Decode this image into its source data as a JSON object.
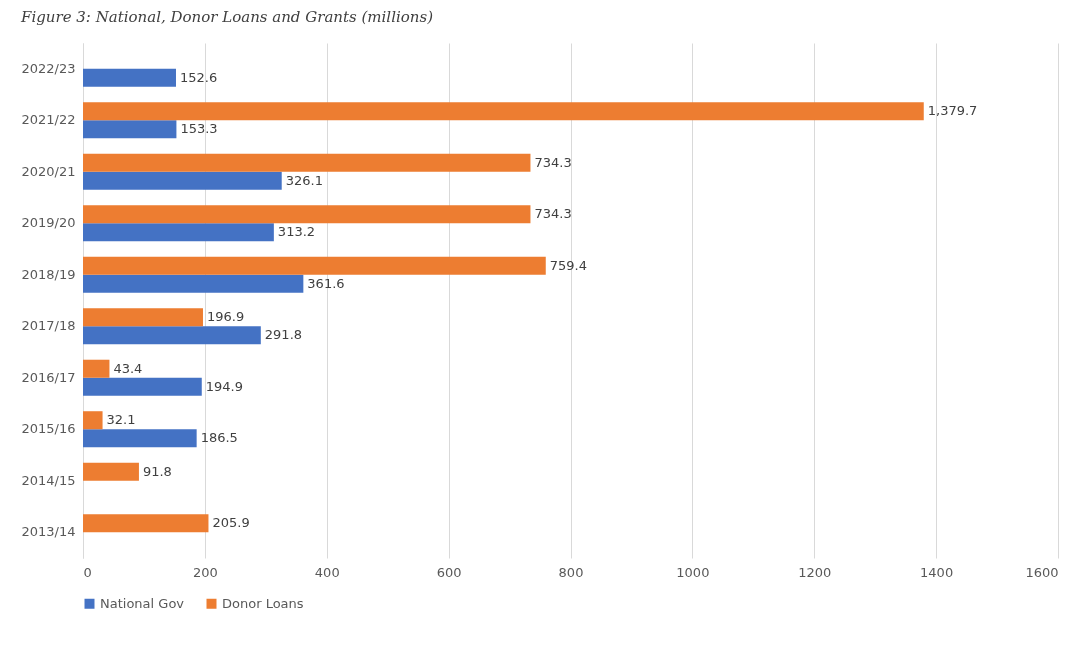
{
  "chart_data": {
    "type": "bar",
    "orientation": "horizontal",
    "title": "Figure 3: National, Donor Loans and Grants (millions)",
    "categories": [
      "2022/23",
      "2021/22",
      "2020/21",
      "2019/20",
      "2018/19",
      "2017/18",
      "2016/17",
      "2015/16",
      "2014/15",
      "2013/14"
    ],
    "series": [
      {
        "name": "National Gov",
        "color": "#4472c4",
        "values": [
          152.6,
          153.3,
          326.1,
          313.2,
          361.6,
          291.8,
          194.9,
          186.5,
          null,
          null
        ],
        "value_labels": [
          "152.6",
          "153.3",
          "326.1",
          "313.2",
          "361.6",
          "291.8",
          "194.9",
          "186.5",
          null,
          null
        ]
      },
      {
        "name": "Donor Loans",
        "color": "#ed7d31",
        "values": [
          null,
          1379.7,
          734.3,
          734.3,
          759.4,
          196.9,
          43.4,
          32.1,
          91.8,
          205.9
        ],
        "value_labels": [
          null,
          "1,379.7",
          "734.3",
          "734.3",
          "759.4",
          "196.9",
          "43.4",
          "32.1",
          "91.8",
          "205.9"
        ]
      }
    ],
    "xlim": [
      0,
      1600
    ],
    "xticks": [
      0,
      200,
      400,
      600,
      800,
      1000,
      1200,
      1400,
      1600
    ],
    "grid": "x",
    "legend": "bottom"
  }
}
